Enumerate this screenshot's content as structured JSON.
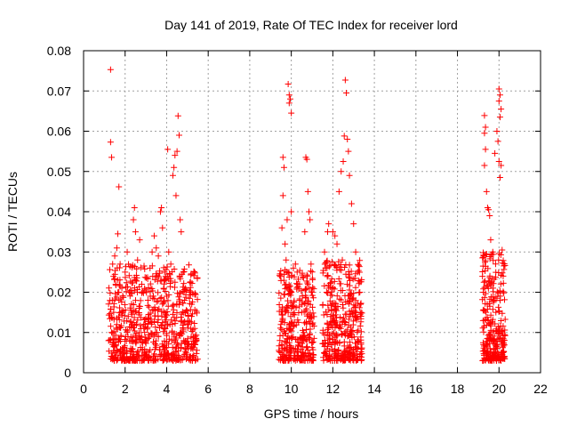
{
  "chart_data": {
    "type": "scatter",
    "title": "Day 141 of 2019, Rate Of TEC Index for receiver lord",
    "xlabel": "GPS time / hours",
    "ylabel": "ROTI / TECUs",
    "xlim": [
      0,
      22
    ],
    "ylim": [
      0,
      0.08
    ],
    "grid": true,
    "marker": "plus",
    "color": "#ff0000",
    "x_ticks": [
      "0",
      "2",
      "4",
      "6",
      "8",
      "10",
      "12",
      "14",
      "16",
      "18",
      "20",
      "22"
    ],
    "y_ticks": [
      "0",
      "0.01",
      "0.02",
      "0.03",
      "0.04",
      "0.05",
      "0.06",
      "0.07",
      "0.08"
    ],
    "series": [
      {
        "name": "ROTI",
        "points": [
          [
            1.3,
            0.0753
          ],
          [
            1.3,
            0.0573
          ],
          [
            1.35,
            0.0535
          ],
          [
            1.7,
            0.0462
          ],
          [
            1.65,
            0.0345
          ],
          [
            1.5,
            0.029
          ],
          [
            1.4,
            0.027
          ],
          [
            1.6,
            0.031
          ],
          [
            1.55,
            0.022
          ],
          [
            1.45,
            0.015
          ],
          [
            1.35,
            0.01
          ],
          [
            1.4,
            0.007
          ],
          [
            1.5,
            0.005
          ],
          [
            1.6,
            0.012
          ],
          [
            1.7,
            0.018
          ],
          [
            1.8,
            0.009
          ],
          [
            1.9,
            0.006
          ],
          [
            2.0,
            0.025
          ],
          [
            2.1,
            0.03
          ],
          [
            2.2,
            0.02
          ],
          [
            2.3,
            0.015
          ],
          [
            2.4,
            0.038
          ],
          [
            2.45,
            0.041
          ],
          [
            2.5,
            0.035
          ],
          [
            2.6,
            0.028
          ],
          [
            2.7,
            0.033
          ],
          [
            2.8,
            0.022
          ],
          [
            2.9,
            0.012
          ],
          [
            3.0,
            0.008
          ],
          [
            3.1,
            0.018
          ],
          [
            3.2,
            0.026
          ],
          [
            3.3,
            0.03
          ],
          [
            3.4,
            0.034
          ],
          [
            3.5,
            0.031
          ],
          [
            3.6,
            0.029
          ],
          [
            3.7,
            0.04
          ],
          [
            3.75,
            0.041
          ],
          [
            3.8,
            0.036
          ],
          [
            3.9,
            0.025
          ],
          [
            4.0,
            0.019
          ],
          [
            4.05,
            0.0555
          ],
          [
            4.1,
            0.03
          ],
          [
            4.2,
            0.027
          ],
          [
            4.3,
            0.049
          ],
          [
            4.35,
            0.051
          ],
          [
            4.4,
            0.054
          ],
          [
            4.45,
            0.044
          ],
          [
            4.5,
            0.055
          ],
          [
            4.55,
            0.0638
          ],
          [
            4.6,
            0.059
          ],
          [
            4.65,
            0.038
          ],
          [
            4.7,
            0.035
          ],
          [
            4.8,
            0.025
          ],
          [
            4.9,
            0.015
          ],
          [
            5.0,
            0.012
          ],
          [
            5.1,
            0.02
          ],
          [
            5.2,
            0.014
          ],
          [
            5.3,
            0.009
          ],
          [
            5.35,
            0.011
          ],
          [
            4.25,
            0.008
          ],
          [
            9.6,
            0.0535
          ],
          [
            9.65,
            0.051
          ],
          [
            9.6,
            0.044
          ],
          [
            9.55,
            0.036
          ],
          [
            9.7,
            0.032
          ],
          [
            9.75,
            0.028
          ],
          [
            9.8,
            0.038
          ],
          [
            9.85,
            0.0717
          ],
          [
            9.9,
            0.069
          ],
          [
            9.9,
            0.067
          ],
          [
            9.95,
            0.068
          ],
          [
            10.0,
            0.0645
          ],
          [
            10.0,
            0.04
          ],
          [
            10.1,
            0.026
          ],
          [
            10.2,
            0.027
          ],
          [
            10.3,
            0.022
          ],
          [
            10.4,
            0.018
          ],
          [
            10.5,
            0.015
          ],
          [
            10.6,
            0.01
          ],
          [
            10.65,
            0.035
          ],
          [
            10.7,
            0.0535
          ],
          [
            10.75,
            0.053
          ],
          [
            10.8,
            0.045
          ],
          [
            10.85,
            0.04
          ],
          [
            10.9,
            0.038
          ],
          [
            10.95,
            0.027
          ],
          [
            11.0,
            0.02
          ],
          [
            9.5,
            0.012
          ],
          [
            9.45,
            0.008
          ],
          [
            9.5,
            0.005
          ],
          [
            11.6,
            0.03
          ],
          [
            11.65,
            0.026
          ],
          [
            11.7,
            0.02
          ],
          [
            11.75,
            0.035
          ],
          [
            11.8,
            0.037
          ],
          [
            12.0,
            0.035
          ],
          [
            12.1,
            0.034
          ],
          [
            12.2,
            0.032
          ],
          [
            12.3,
            0.045
          ],
          [
            12.4,
            0.05
          ],
          [
            12.5,
            0.0525
          ],
          [
            12.55,
            0.0588
          ],
          [
            12.6,
            0.0727
          ],
          [
            12.65,
            0.0695
          ],
          [
            12.7,
            0.058
          ],
          [
            12.75,
            0.055
          ],
          [
            12.8,
            0.049
          ],
          [
            12.9,
            0.042
          ],
          [
            13.0,
            0.037
          ],
          [
            13.1,
            0.03
          ],
          [
            13.2,
            0.025
          ],
          [
            13.3,
            0.02
          ],
          [
            13.35,
            0.015
          ],
          [
            19.3,
            0.0639
          ],
          [
            19.35,
            0.061
          ],
          [
            19.3,
            0.0595
          ],
          [
            19.35,
            0.0555
          ],
          [
            19.3,
            0.0515
          ],
          [
            19.4,
            0.045
          ],
          [
            19.45,
            0.041
          ],
          [
            19.5,
            0.0405
          ],
          [
            19.55,
            0.039
          ],
          [
            19.6,
            0.033
          ],
          [
            19.7,
            0.03
          ],
          [
            19.8,
            0.0545
          ],
          [
            19.9,
            0.06
          ],
          [
            19.95,
            0.0575
          ],
          [
            20.0,
            0.0705
          ],
          [
            20.05,
            0.069
          ],
          [
            20.0,
            0.0675
          ],
          [
            20.1,
            0.0655
          ],
          [
            20.05,
            0.0635
          ],
          [
            20.0,
            0.0525
          ],
          [
            20.1,
            0.0515
          ],
          [
            20.05,
            0.0485
          ],
          [
            20.15,
            0.0305
          ],
          [
            20.2,
            0.024
          ],
          [
            19.25,
            0.02
          ],
          [
            19.3,
            0.013
          ],
          [
            19.25,
            0.007
          ],
          [
            20.2,
            0.008
          ],
          [
            20.15,
            0.005
          ]
        ],
        "dense_clusters": [
          {
            "x_range": [
              1.2,
              5.5
            ],
            "y_range": [
              0.003,
              0.027
            ],
            "count": 700
          },
          {
            "x_range": [
              9.4,
              11.1
            ],
            "y_range": [
              0.003,
              0.026
            ],
            "count": 320
          },
          {
            "x_range": [
              11.5,
              13.4
            ],
            "y_range": [
              0.003,
              0.028
            ],
            "count": 380
          },
          {
            "x_range": [
              19.2,
              20.3
            ],
            "y_range": [
              0.003,
              0.03
            ],
            "count": 260
          }
        ]
      }
    ]
  }
}
